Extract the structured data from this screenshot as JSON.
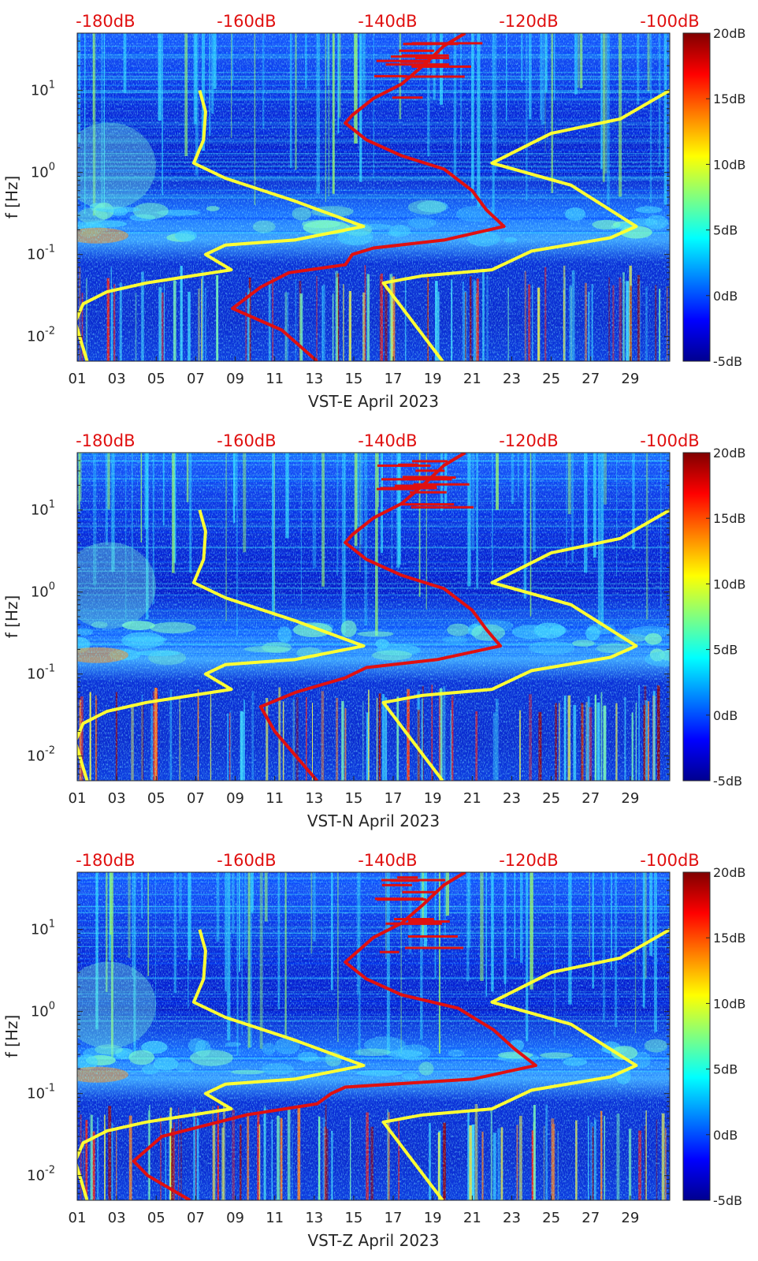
{
  "chart_data": [
    {
      "type": "heatmap",
      "xlabel": "VST-E April 2023",
      "ylabel": "f [Hz]",
      "x_ticks": [
        "01",
        "03",
        "05",
        "07",
        "09",
        "11",
        "13",
        "15",
        "17",
        "19",
        "21",
        "23",
        "25",
        "27",
        "29"
      ],
      "y_ticks": [
        "10^-2",
        "10^-1",
        "10^0",
        "10^1"
      ],
      "top_axis_ticks": [
        "-180dB",
        "-160dB",
        "-140dB",
        "-120dB",
        "-100dB"
      ],
      "colorbar_ticks": [
        "20dB",
        "15dB",
        "10dB",
        "5dB",
        "0dB",
        "-5dB"
      ],
      "colorbar_range": [
        -5,
        20
      ],
      "ylim": [
        0.005,
        50
      ],
      "yscale": "log",
      "xlim": [
        1,
        31
      ],
      "top_axis_range": [
        -184,
        -100
      ],
      "series": [
        {
          "color": "#ffff33",
          "points": [
            [
              7.2,
              10
            ],
            [
              7.5,
              5.5
            ],
            [
              7.4,
              2.5
            ],
            [
              6.9,
              1.3
            ],
            [
              8.5,
              0.85
            ],
            [
              12,
              0.45
            ],
            [
              15.5,
              0.22
            ],
            [
              12,
              0.15
            ],
            [
              8.5,
              0.13
            ],
            [
              7.5,
              0.1
            ],
            [
              8.8,
              0.065
            ],
            [
              4.5,
              0.045
            ],
            [
              2.5,
              0.035
            ],
            [
              1.3,
              0.025
            ],
            [
              0.9,
              0.015
            ],
            [
              1.5,
              0.005
            ]
          ]
        },
        {
          "color": "#ffff33",
          "points": [
            [
              31,
              10
            ],
            [
              28.5,
              4.5
            ],
            [
              25,
              3
            ],
            [
              22,
              1.3
            ],
            [
              26,
              0.7
            ],
            [
              29.3,
              0.22
            ],
            [
              28,
              0.16
            ],
            [
              24,
              0.11
            ],
            [
              22,
              0.065
            ],
            [
              18.5,
              0.055
            ],
            [
              16.5,
              0.045
            ],
            [
              19.5,
              0.005
            ]
          ]
        },
        {
          "color": "#e01010",
          "points": [
            [
              -129,
              50
            ],
            [
              -132,
              35
            ],
            [
              -135,
              20
            ],
            [
              -138,
              12
            ],
            [
              -142,
              8
            ],
            [
              -145,
              5
            ],
            [
              -146,
              4
            ],
            [
              -143,
              2.5
            ],
            [
              -138,
              1.6
            ],
            [
              -132,
              1.1
            ],
            [
              -128,
              0.6
            ],
            [
              -126,
              0.35
            ],
            [
              -123.5,
              0.22
            ],
            [
              -132,
              0.15
            ],
            [
              -142,
              0.12
            ],
            [
              -145,
              0.1
            ],
            [
              -146,
              0.075
            ],
            [
              -154,
              0.06
            ],
            [
              -158,
              0.04
            ],
            [
              -162,
              0.022
            ],
            [
              -155,
              0.012
            ],
            [
              -150,
              0.005
            ]
          ]
        }
      ]
    },
    {
      "type": "heatmap",
      "xlabel": "VST-N April 2023",
      "ylabel": "f [Hz]",
      "x_ticks": [
        "01",
        "03",
        "05",
        "07",
        "09",
        "11",
        "13",
        "15",
        "17",
        "19",
        "21",
        "23",
        "25",
        "27",
        "29"
      ],
      "y_ticks": [
        "10^-2",
        "10^-1",
        "10^0",
        "10^1"
      ],
      "top_axis_ticks": [
        "-180dB",
        "-160dB",
        "-140dB",
        "-120dB",
        "-100dB"
      ],
      "colorbar_ticks": [
        "20dB",
        "15dB",
        "10dB",
        "5dB",
        "0dB",
        "-5dB"
      ],
      "colorbar_range": [
        -5,
        20
      ],
      "ylim": [
        0.005,
        50
      ],
      "yscale": "log",
      "xlim": [
        1,
        31
      ],
      "top_axis_range": [
        -184,
        -100
      ],
      "series": [
        {
          "color": "#ffff33",
          "points": [
            [
              7.2,
              10
            ],
            [
              7.5,
              5.5
            ],
            [
              7.4,
              2.5
            ],
            [
              6.9,
              1.3
            ],
            [
              8.5,
              0.85
            ],
            [
              12,
              0.45
            ],
            [
              15.5,
              0.22
            ],
            [
              12,
              0.15
            ],
            [
              8.5,
              0.13
            ],
            [
              7.5,
              0.1
            ],
            [
              8.8,
              0.065
            ],
            [
              4.5,
              0.045
            ],
            [
              2.5,
              0.035
            ],
            [
              1.3,
              0.025
            ],
            [
              0.9,
              0.015
            ],
            [
              1.5,
              0.005
            ]
          ]
        },
        {
          "color": "#ffff33",
          "points": [
            [
              31,
              10
            ],
            [
              28.5,
              4.5
            ],
            [
              25,
              3
            ],
            [
              22,
              1.3
            ],
            [
              26,
              0.7
            ],
            [
              29.3,
              0.22
            ],
            [
              28,
              0.16
            ],
            [
              24,
              0.11
            ],
            [
              22,
              0.065
            ],
            [
              18.5,
              0.055
            ],
            [
              16.5,
              0.045
            ],
            [
              19.5,
              0.005
            ]
          ]
        },
        {
          "color": "#e01010",
          "points": [
            [
              -129,
              50
            ],
            [
              -132,
              35
            ],
            [
              -135,
              20
            ],
            [
              -138,
              12
            ],
            [
              -142,
              8
            ],
            [
              -145,
              5
            ],
            [
              -146,
              4
            ],
            [
              -143,
              2.5
            ],
            [
              -138,
              1.6
            ],
            [
              -132,
              1.1
            ],
            [
              -128,
              0.6
            ],
            [
              -126,
              0.35
            ],
            [
              -124,
              0.22
            ],
            [
              -133,
              0.15
            ],
            [
              -143,
              0.12
            ],
            [
              -146,
              0.09
            ],
            [
              -153,
              0.06
            ],
            [
              -158,
              0.04
            ],
            [
              -156,
              0.02
            ],
            [
              -150,
              0.005
            ]
          ]
        }
      ]
    },
    {
      "type": "heatmap",
      "xlabel": "VST-Z April 2023",
      "ylabel": "f [Hz]",
      "x_ticks": [
        "01",
        "03",
        "05",
        "07",
        "09",
        "11",
        "13",
        "15",
        "17",
        "19",
        "21",
        "23",
        "25",
        "27",
        "29"
      ],
      "y_ticks": [
        "10^-2",
        "10^-1",
        "10^0",
        "10^1"
      ],
      "top_axis_ticks": [
        "-180dB",
        "-160dB",
        "-140dB",
        "-120dB",
        "-100dB"
      ],
      "colorbar_ticks": [
        "20dB",
        "15dB",
        "10dB",
        "5dB",
        "0dB",
        "-5dB"
      ],
      "colorbar_range": [
        -5,
        20
      ],
      "ylim": [
        0.005,
        50
      ],
      "yscale": "log",
      "xlim": [
        1,
        31
      ],
      "top_axis_range": [
        -184,
        -100
      ],
      "series": [
        {
          "color": "#ffff33",
          "points": [
            [
              7.2,
              10
            ],
            [
              7.5,
              5.5
            ],
            [
              7.4,
              2.5
            ],
            [
              6.9,
              1.3
            ],
            [
              8.5,
              0.85
            ],
            [
              12,
              0.45
            ],
            [
              15.5,
              0.22
            ],
            [
              12,
              0.15
            ],
            [
              8.5,
              0.13
            ],
            [
              7.5,
              0.1
            ],
            [
              8.8,
              0.065
            ],
            [
              4.5,
              0.045
            ],
            [
              2.5,
              0.035
            ],
            [
              1.3,
              0.025
            ],
            [
              0.9,
              0.015
            ],
            [
              1.5,
              0.005
            ]
          ]
        },
        {
          "color": "#ffff33",
          "points": [
            [
              31,
              10
            ],
            [
              28.5,
              4.5
            ],
            [
              25,
              3
            ],
            [
              22,
              1.3
            ],
            [
              26,
              0.7
            ],
            [
              29.3,
              0.22
            ],
            [
              28,
              0.16
            ],
            [
              24,
              0.11
            ],
            [
              22,
              0.065
            ],
            [
              18.5,
              0.055
            ],
            [
              16.5,
              0.045
            ],
            [
              19.5,
              0.005
            ]
          ]
        },
        {
          "color": "#e01010",
          "points": [
            [
              -129,
              50
            ],
            [
              -132,
              35
            ],
            [
              -135,
              20
            ],
            [
              -138,
              12
            ],
            [
              -142,
              8
            ],
            [
              -146,
              4
            ],
            [
              -143,
              2.5
            ],
            [
              -138,
              1.6
            ],
            [
              -130,
              1.1
            ],
            [
              -125,
              0.6
            ],
            [
              -122,
              0.35
            ],
            [
              -119,
              0.22
            ],
            [
              -128,
              0.15
            ],
            [
              -146,
              0.12
            ],
            [
              -148,
              0.1
            ],
            [
              -150,
              0.075
            ],
            [
              -160,
              0.055
            ],
            [
              -172,
              0.03
            ],
            [
              -176,
              0.015
            ],
            [
              -174,
              0.01
            ],
            [
              -168,
              0.005
            ]
          ]
        }
      ]
    }
  ]
}
